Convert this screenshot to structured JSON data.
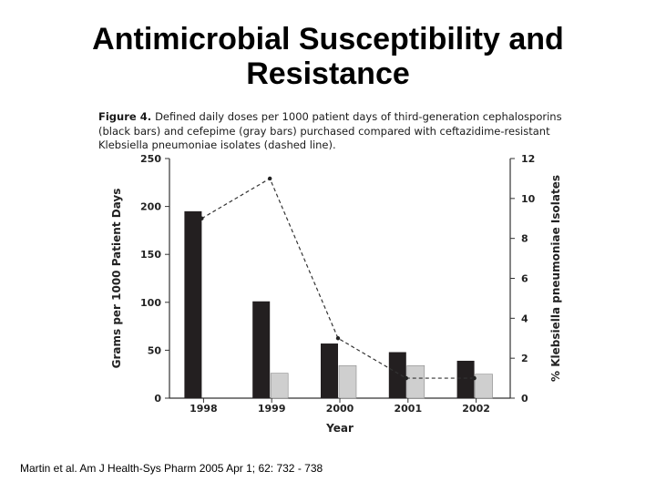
{
  "slide": {
    "title_line1": "Antimicrobial Susceptibility and",
    "title_line2": "Resistance",
    "citation": "Martin et al.  Am J Health-Sys Pharm 2005 Apr 1; 62: 732 - 738"
  },
  "figure": {
    "label": "Figure 4.",
    "caption": "Defined daily doses per 1000 patient days of third-generation cephalosporins (black bars) and cefepime (gray bars) purchased compared with ceftazidime-resistant Klebsiella pneumoniae isolates (dashed line)."
  },
  "chart_data": {
    "type": "bar",
    "categories": [
      "1998",
      "1999",
      "2000",
      "2001",
      "2002"
    ],
    "series": [
      {
        "values": [
          195,
          101,
          57,
          48,
          39
        ],
        "color": "#231f20",
        "axis": "left"
      },
      {
        "values": [
          null,
          26,
          34,
          34,
          25
        ],
        "color": "#cfcfcf",
        "axis": "left"
      },
      {
        "values": [
          9,
          11,
          3,
          1,
          1
        ],
        "axis": "right",
        "render": "dashed-line"
      }
    ],
    "xlabel": "Year",
    "ylabel": "Grams per 1000 Patient Days",
    "y2label": "% Klebsiella pneumoniae Isolates",
    "ylim": [
      0,
      250
    ],
    "yticks": [
      0,
      50,
      100,
      150,
      200,
      250
    ],
    "y2lim": [
      0,
      12
    ],
    "y2ticks": [
      0,
      2,
      4,
      6,
      8,
      10,
      12
    ],
    "grid": false
  }
}
